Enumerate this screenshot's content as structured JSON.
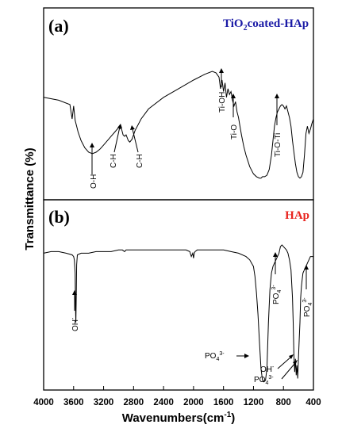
{
  "chart_data": [
    {
      "type": "line",
      "panel_label": "(a)",
      "title": "TiO",
      "title_sub": "2",
      "title_rest": "coated-HAp",
      "title_color": "#1a1aa6",
      "xlim": [
        4000,
        400
      ],
      "series": [
        {
          "x": [
            4000,
            3800,
            3650,
            3620,
            3600,
            3580,
            3560,
            3540,
            3500,
            3450,
            3400,
            3350,
            3300,
            3250,
            3200,
            3100,
            3050,
            3000,
            2960,
            2940,
            2920,
            2900,
            2870,
            2850,
            2820,
            2780,
            2700,
            2600,
            2400,
            2200,
            2000,
            1850,
            1750,
            1700,
            1660,
            1640,
            1620,
            1600,
            1580,
            1560,
            1540,
            1520,
            1500,
            1480,
            1460,
            1440,
            1420,
            1400,
            1380,
            1360,
            1330,
            1300,
            1250,
            1200,
            1160,
            1120,
            1100,
            1080,
            1050,
            1020,
            990,
            960,
            940,
            920,
            900,
            880,
            860,
            840,
            820,
            800,
            780,
            760,
            740,
            720,
            700,
            680,
            660,
            640,
            620,
            600,
            580,
            560,
            540,
            520,
            500,
            480,
            460,
            440,
            420,
            400
          ],
          "y": [
            60,
            58,
            55,
            45,
            54,
            44,
            40,
            36,
            30,
            25,
            22,
            21,
            22,
            24,
            27,
            33,
            36,
            39,
            38,
            34,
            33,
            34,
            30,
            29,
            31,
            37,
            45,
            52,
            60,
            66,
            72,
            76,
            78,
            77,
            74,
            66,
            72,
            64,
            70,
            60,
            66,
            62,
            64,
            58,
            54,
            57,
            50,
            46,
            40,
            34,
            26,
            20,
            12,
            7,
            5,
            4,
            4,
            5,
            5,
            6,
            10,
            20,
            30,
            40,
            46,
            50,
            52,
            54,
            55,
            54,
            52,
            54,
            50,
            46,
            40,
            30,
            22,
            14,
            8,
            5,
            4,
            5,
            8,
            20,
            35,
            40,
            35,
            38,
            42,
            45
          ]
        }
      ],
      "annotations": [
        {
          "text": "O-H",
          "x": 3360,
          "y": 22
        },
        {
          "text": "C-H",
          "x": 3020,
          "y": 38
        },
        {
          "text": "C-H",
          "x": 2830,
          "y": 30
        },
        {
          "text": "Ti-OH",
          "x": 1620,
          "y": 72
        },
        {
          "text": "Ti-O",
          "x": 1460,
          "y": 57
        },
        {
          "text": "Ti-O-Ti",
          "x": 840,
          "y": 54
        }
      ]
    },
    {
      "type": "line",
      "panel_label": "(b)",
      "title": "HAp",
      "title_color": "#e8231e",
      "xlim": [
        4000,
        400
      ],
      "series": [
        {
          "x": [
            4000,
            3900,
            3800,
            3700,
            3620,
            3600,
            3590,
            3580,
            3575,
            3570,
            3565,
            3560,
            3550,
            3500,
            3400,
            3300,
            3200,
            3100,
            3000,
            2950,
            2920,
            2900,
            2850,
            2800,
            2700,
            2600,
            2500,
            2400,
            2300,
            2200,
            2100,
            2050,
            2030,
            2010,
            2000,
            1990,
            1980,
            1950,
            1900,
            1800,
            1700,
            1600,
            1500,
            1400,
            1300,
            1250,
            1200,
            1180,
            1160,
            1140,
            1120,
            1100,
            1080,
            1060,
            1040,
            1020,
            1000,
            980,
            960,
            940,
            920,
            900,
            880,
            860,
            840,
            820,
            800,
            780,
            760,
            740,
            720,
            700,
            680,
            670,
            660,
            650,
            640,
            630,
            620,
            610,
            600,
            590,
            580,
            570,
            560,
            550,
            540,
            520,
            500,
            480,
            460,
            440,
            420,
            400
          ],
          "y": [
            82,
            83,
            83,
            82,
            81,
            80,
            78,
            70,
            50,
            40,
            55,
            75,
            81,
            82,
            82,
            83,
            83,
            83,
            84,
            84,
            83,
            84,
            84,
            84,
            84,
            84,
            84,
            84,
            84,
            84,
            84,
            83,
            80,
            82,
            79,
            82,
            83,
            84,
            84,
            84,
            84,
            84,
            83,
            82,
            80,
            78,
            74,
            68,
            58,
            45,
            28,
            12,
            5,
            4,
            5,
            12,
            40,
            60,
            70,
            74,
            76,
            78,
            80,
            82,
            86,
            87,
            86,
            85,
            84,
            82,
            78,
            72,
            55,
            40,
            20,
            10,
            18,
            8,
            14,
            6,
            18,
            30,
            40,
            55,
            62,
            66,
            70,
            72,
            74,
            76,
            78,
            80,
            80,
            80
          ]
        }
      ],
      "annotations": [
        {
          "text": "OH",
          "sup": "-",
          "x": 3570,
          "y": 40
        },
        {
          "text": "PO",
          "sub": "4",
          "sup": "3-",
          "x": 1090,
          "y": 4
        },
        {
          "text": "PO",
          "sub": "4",
          "sup": "3-",
          "x": 870,
          "y": 80
        },
        {
          "text": "OH",
          "sup": "-",
          "x": 650,
          "y": 10
        },
        {
          "text": "PO",
          "sub": "4",
          "sup": "3-",
          "x": 610,
          "y": 6
        },
        {
          "text": "PO",
          "sub": "4",
          "sup": "3-",
          "x": 520,
          "y": 72
        }
      ]
    }
  ],
  "axes": {
    "xlabel": "Wavenumbers(cm",
    "xlabel_sup": "-1",
    "xlabel_end": ")",
    "ylabel": "Transmittance (%)",
    "xticks": [
      "4000",
      "3600",
      "3200",
      "2800",
      "2400",
      "2000",
      "1600",
      "1200",
      "800",
      "400"
    ]
  }
}
